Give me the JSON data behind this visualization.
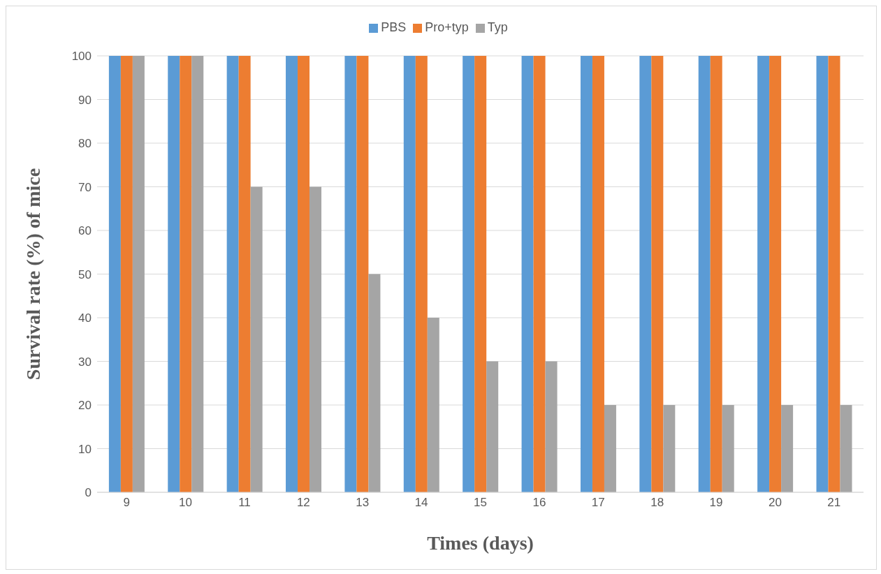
{
  "chart_data": {
    "type": "bar",
    "xlabel": "Times (days)",
    "ylabel": "Survival rate (%) of mice",
    "categories": [
      "9",
      "10",
      "11",
      "12",
      "13",
      "14",
      "15",
      "16",
      "17",
      "18",
      "19",
      "20",
      "21"
    ],
    "series": [
      {
        "name": "PBS",
        "color": "#5b9bd5",
        "values": [
          100,
          100,
          100,
          100,
          100,
          100,
          100,
          100,
          100,
          100,
          100,
          100,
          100
        ]
      },
      {
        "name": "Pro+typ",
        "color": "#ed7d31",
        "values": [
          100,
          100,
          100,
          100,
          100,
          100,
          100,
          100,
          100,
          100,
          100,
          100,
          100
        ]
      },
      {
        "name": "Typ",
        "color": "#a5a5a5",
        "values": [
          100,
          100,
          70,
          70,
          50,
          40,
          30,
          30,
          20,
          20,
          20,
          20,
          20
        ]
      }
    ],
    "ylim": [
      0,
      100
    ],
    "yticks": [
      0,
      10,
      20,
      30,
      40,
      50,
      60,
      70,
      80,
      90,
      100
    ],
    "grid": "y",
    "legend": "top"
  }
}
